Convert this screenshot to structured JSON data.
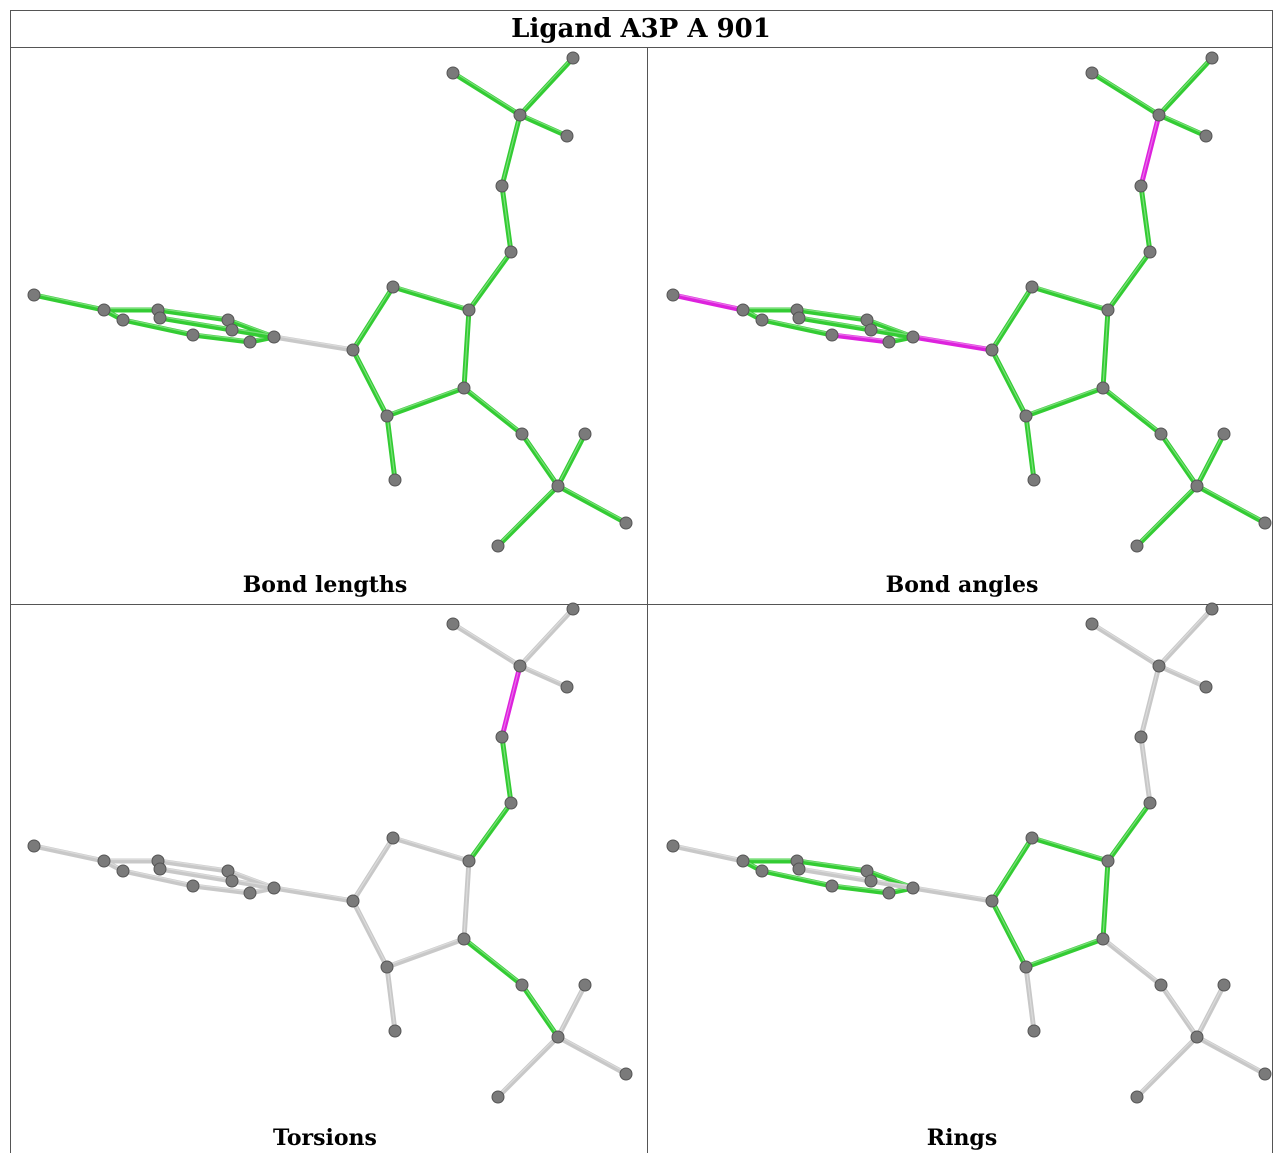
{
  "header": {
    "title": "Ligand A3P A 901"
  },
  "cells": [
    {
      "caption": "Bond lengths"
    },
    {
      "caption": "Bond angles"
    },
    {
      "caption": "Torsions"
    },
    {
      "caption": "Rings"
    }
  ]
}
